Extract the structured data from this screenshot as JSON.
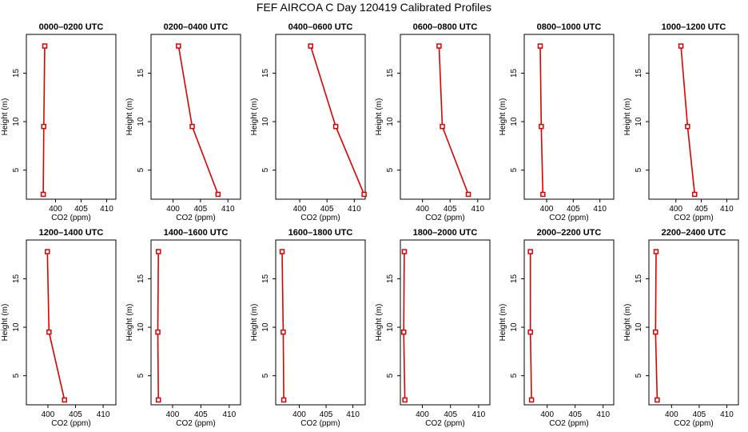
{
  "figure_title": "FEF AIRCOA C  Day 120419  Calibrated Profiles",
  "colors": {
    "series": "#dd0000",
    "axis": "#000000",
    "background": "#ffffff"
  },
  "chart_data": [
    {
      "type": "line",
      "title": "0000–0200 UTC",
      "xlabel": "CO2 (ppm)",
      "ylabel": "Height (m)",
      "xlim": [
        394.3,
        411.8
      ],
      "ylim": [
        2.0,
        19.0
      ],
      "xticks": [
        400,
        405,
        410
      ],
      "xtick_labels": [
        "400",
        "405",
        "410"
      ],
      "yticks": [
        5,
        10,
        15
      ],
      "ytick_labels": [
        "5",
        "10",
        "15"
      ],
      "series": [
        {
          "name": "CO2",
          "x": [
            397.6,
            397.7,
            397.9
          ],
          "y": [
            2.5,
            9.5,
            17.8
          ]
        }
      ]
    },
    {
      "type": "line",
      "title": "0200–0400 UTC",
      "xlabel": "CO2 (ppm)",
      "ylabel": "Height (m)",
      "xlim": [
        396.0,
        412.3
      ],
      "ylim": [
        2.0,
        19.0
      ],
      "xticks": [
        400,
        405,
        410
      ],
      "xtick_labels": [
        "400",
        "405",
        "410"
      ],
      "yticks": [
        5,
        10,
        15
      ],
      "ytick_labels": [
        "5",
        "10",
        "15"
      ],
      "series": [
        {
          "name": "CO2",
          "x": [
            408.2,
            403.5,
            401.0
          ],
          "y": [
            2.5,
            9.5,
            17.8
          ]
        }
      ]
    },
    {
      "type": "line",
      "title": "0400–0600 UTC",
      "xlabel": "CO2 (ppm)",
      "ylabel": "Height (m)",
      "xlim": [
        395.6,
        412.0
      ],
      "ylim": [
        2.0,
        19.0
      ],
      "xticks": [
        400,
        405,
        410
      ],
      "xtick_labels": [
        "400",
        "405",
        "410"
      ],
      "yticks": [
        5,
        10,
        15
      ],
      "ytick_labels": [
        "5",
        "10",
        "15"
      ],
      "series": [
        {
          "name": "CO2",
          "x": [
            411.8,
            406.6,
            402.0
          ],
          "y": [
            2.5,
            9.5,
            17.8
          ]
        }
      ]
    },
    {
      "type": "line",
      "title": "0600–0800 UTC",
      "xlabel": "CO2 (ppm)",
      "ylabel": "Height (m)",
      "xlim": [
        396.0,
        412.2
      ],
      "ylim": [
        2.0,
        19.0
      ],
      "xticks": [
        400,
        405,
        410
      ],
      "xtick_labels": [
        "400",
        "405",
        "410"
      ],
      "yticks": [
        5,
        10,
        15
      ],
      "ytick_labels": [
        "5",
        "10",
        "15"
      ],
      "series": [
        {
          "name": "CO2",
          "x": [
            408.3,
            403.6,
            403.0
          ],
          "y": [
            2.5,
            9.5,
            17.8
          ]
        }
      ]
    },
    {
      "type": "line",
      "title": "0800–1000 UTC",
      "xlabel": "CO2 (ppm)",
      "ylabel": "Height (m)",
      "xlim": [
        395.8,
        412.6
      ],
      "ylim": [
        2.0,
        19.0
      ],
      "xticks": [
        400,
        405,
        410
      ],
      "xtick_labels": [
        "400",
        "405",
        "410"
      ],
      "yticks": [
        5,
        10,
        15
      ],
      "ytick_labels": [
        "5",
        "10",
        "15"
      ],
      "series": [
        {
          "name": "CO2",
          "x": [
            399.3,
            399.0,
            398.8
          ],
          "y": [
            2.5,
            9.5,
            17.8
          ]
        }
      ]
    },
    {
      "type": "line",
      "title": "1000–1200 UTC",
      "xlabel": "CO2 (ppm)",
      "ylabel": "Height (m)",
      "xlim": [
        394.7,
        412.3
      ],
      "ylim": [
        2.0,
        19.0
      ],
      "xticks": [
        400,
        405,
        410
      ],
      "xtick_labels": [
        "400",
        "405",
        "410"
      ],
      "yticks": [
        5,
        10,
        15
      ],
      "ytick_labels": [
        "5",
        "10",
        "15"
      ],
      "series": [
        {
          "name": "CO2",
          "x": [
            403.7,
            402.3,
            401.0
          ],
          "y": [
            2.5,
            9.5,
            17.8
          ]
        }
      ]
    },
    {
      "type": "line",
      "title": "1200–1400 UTC",
      "xlabel": "CO2 (ppm)",
      "ylabel": "Height (m)",
      "xlim": [
        396.1,
        412.3
      ],
      "ylim": [
        2.0,
        19.0
      ],
      "xticks": [
        400,
        405,
        410
      ],
      "xtick_labels": [
        "400",
        "405",
        "410"
      ],
      "yticks": [
        5,
        10,
        15
      ],
      "ytick_labels": [
        "5",
        "10",
        "15"
      ],
      "series": [
        {
          "name": "CO2",
          "x": [
            403.0,
            400.2,
            399.9
          ],
          "y": [
            2.5,
            9.5,
            17.8
          ]
        }
      ]
    },
    {
      "type": "line",
      "title": "1400–1600 UTC",
      "xlabel": "CO2 (ppm)",
      "ylabel": "Height (m)",
      "xlim": [
        396.2,
        412.0
      ],
      "ylim": [
        2.0,
        19.0
      ],
      "xticks": [
        400,
        405,
        410
      ],
      "xtick_labels": [
        "400",
        "405",
        "410"
      ],
      "yticks": [
        5,
        10,
        15
      ],
      "ytick_labels": [
        "5",
        "10",
        "15"
      ],
      "series": [
        {
          "name": "CO2",
          "x": [
            397.5,
            397.4,
            397.5
          ],
          "y": [
            2.5,
            9.5,
            17.8
          ]
        }
      ]
    },
    {
      "type": "line",
      "title": "1600–1800 UTC",
      "xlabel": "CO2 (ppm)",
      "ylabel": "Height (m)",
      "xlim": [
        395.6,
        412.3
      ],
      "ylim": [
        2.0,
        19.0
      ],
      "xticks": [
        400,
        405,
        410
      ],
      "xtick_labels": [
        "400",
        "405",
        "410"
      ],
      "yticks": [
        5,
        10,
        15
      ],
      "ytick_labels": [
        "5",
        "10",
        "15"
      ],
      "series": [
        {
          "name": "CO2",
          "x": [
            397.1,
            397.0,
            396.8
          ],
          "y": [
            2.5,
            9.5,
            17.8
          ]
        }
      ]
    },
    {
      "type": "line",
      "title": "1800–2000 UTC",
      "xlabel": "CO2 (ppm)",
      "ylabel": "Height (m)",
      "xlim": [
        396.1,
        412.0
      ],
      "ylim": [
        2.0,
        19.0
      ],
      "xticks": [
        400,
        405,
        410
      ],
      "xtick_labels": [
        "400",
        "405",
        "410"
      ],
      "yticks": [
        5,
        10,
        15
      ],
      "ytick_labels": [
        "5",
        "10",
        "15"
      ],
      "series": [
        {
          "name": "CO2",
          "x": [
            396.9,
            396.7,
            396.8
          ],
          "y": [
            2.5,
            9.5,
            17.8
          ]
        }
      ]
    },
    {
      "type": "line",
      "title": "2000–2200 UTC",
      "xlabel": "CO2 (ppm)",
      "ylabel": "Height (m)",
      "xlim": [
        395.9,
        411.9
      ],
      "ylim": [
        2.0,
        19.0
      ],
      "xticks": [
        400,
        405,
        410
      ],
      "xtick_labels": [
        "400",
        "405",
        "410"
      ],
      "yticks": [
        5,
        10,
        15
      ],
      "ytick_labels": [
        "5",
        "10",
        "15"
      ],
      "series": [
        {
          "name": "CO2",
          "x": [
            397.2,
            397.0,
            397.0
          ],
          "y": [
            2.5,
            9.5,
            17.8
          ]
        }
      ]
    },
    {
      "type": "line",
      "title": "2200–2400 UTC",
      "xlabel": "CO2 (ppm)",
      "ylabel": "Height (m)",
      "xlim": [
        395.9,
        412.1
      ],
      "ylim": [
        2.0,
        19.0
      ],
      "xticks": [
        400,
        405,
        410
      ],
      "xtick_labels": [
        "400",
        "405",
        "410"
      ],
      "yticks": [
        5,
        10,
        15
      ],
      "ytick_labels": [
        "5",
        "10",
        "15"
      ],
      "series": [
        {
          "name": "CO2",
          "x": [
            397.4,
            397.1,
            397.2
          ],
          "y": [
            2.5,
            9.5,
            17.8
          ]
        }
      ]
    }
  ]
}
